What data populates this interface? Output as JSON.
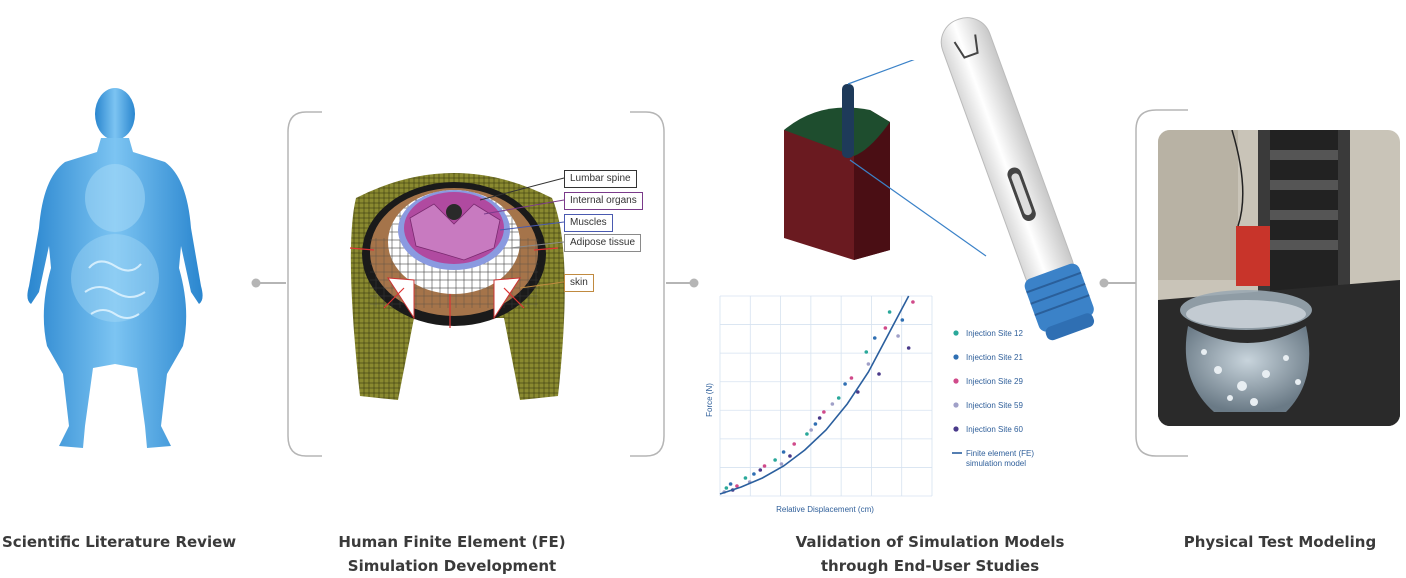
{
  "colors": {
    "connector": "#b5b5b5",
    "human_blue": "#3d9ad8",
    "plot_line": "#2b5f9e",
    "cube_red": "#6a1a20",
    "cube_green": "#1e4d2e",
    "injector_blue": "#3b82c8"
  },
  "steps": [
    {
      "caption_line1": "Scientific Literature Review",
      "caption_line2": ""
    },
    {
      "caption_line1": "Human Finite Element (FE)",
      "caption_line2": "Simulation Development"
    },
    {
      "caption_line1": "Validation of Simulation Models",
      "caption_line2": "through End-User Studies"
    },
    {
      "caption_line1": "Physical Test Modeling",
      "caption_line2": ""
    }
  ],
  "fe_labels": [
    {
      "text": "Lumbar spine",
      "border": "#333333"
    },
    {
      "text": "Internal organs",
      "border": "#7a3a8a"
    },
    {
      "text": "Muscles",
      "border": "#4a5ab0"
    },
    {
      "text": "Adipose tissue",
      "border": "#8a8a8a"
    },
    {
      "text": "skin",
      "border": "#c08a40"
    }
  ],
  "icons": [
    "human-body-icon",
    "fe-abdomen-model-icon",
    "tissue-cube-icon",
    "autoinjector-icon",
    "physical-test-photo"
  ],
  "chart_data": {
    "type": "scatter",
    "title": "",
    "xlabel": "Relative Displacement (cm)",
    "ylabel": "Force (N)",
    "xlim": [
      0,
      10
    ],
    "ylim": [
      0,
      10
    ],
    "grid": true,
    "legend_position": "right",
    "series": [
      {
        "name": "Injection Site 12",
        "color": "#2aa89a",
        "values": [
          [
            0.3,
            0.4
          ],
          [
            1.2,
            0.9
          ],
          [
            2.6,
            1.8
          ],
          [
            4.1,
            3.1
          ],
          [
            5.6,
            4.9
          ],
          [
            6.9,
            7.2
          ],
          [
            8.0,
            9.2
          ]
        ]
      },
      {
        "name": "Injection Site 21",
        "color": "#2f6fb3",
        "values": [
          [
            0.5,
            0.6
          ],
          [
            1.6,
            1.1
          ],
          [
            3.0,
            2.2
          ],
          [
            4.5,
            3.6
          ],
          [
            5.9,
            5.6
          ],
          [
            7.3,
            7.9
          ],
          [
            8.6,
            8.8
          ]
        ]
      },
      {
        "name": "Injection Site 29",
        "color": "#d04a8a",
        "values": [
          [
            0.8,
            0.5
          ],
          [
            2.1,
            1.5
          ],
          [
            3.5,
            2.6
          ],
          [
            4.9,
            4.2
          ],
          [
            6.2,
            5.9
          ],
          [
            7.8,
            8.4
          ],
          [
            9.1,
            9.7
          ]
        ]
      },
      {
        "name": "Injection Site 59",
        "color": "#a0a0c8",
        "values": [
          [
            0.2,
            0.2
          ],
          [
            1.4,
            0.7
          ],
          [
            2.9,
            1.6
          ],
          [
            4.3,
            3.3
          ],
          [
            5.3,
            4.6
          ],
          [
            7.0,
            6.6
          ],
          [
            8.4,
            8.0
          ]
        ]
      },
      {
        "name": "Injection Site 60",
        "color": "#4a3a8a",
        "values": [
          [
            0.6,
            0.3
          ],
          [
            1.9,
            1.3
          ],
          [
            3.3,
            2.0
          ],
          [
            4.7,
            3.9
          ],
          [
            6.5,
            5.2
          ],
          [
            7.5,
            6.1
          ],
          [
            8.9,
            7.4
          ]
        ]
      }
    ],
    "fit_line": {
      "name": "Finite element (FE) simulation model",
      "values": [
        [
          0,
          0.1
        ],
        [
          1,
          0.45
        ],
        [
          2,
          0.9
        ],
        [
          3,
          1.5
        ],
        [
          4,
          2.3
        ],
        [
          5,
          3.3
        ],
        [
          6,
          4.6
        ],
        [
          7,
          6.2
        ],
        [
          8,
          8.2
        ],
        [
          8.9,
          10
        ]
      ]
    }
  }
}
